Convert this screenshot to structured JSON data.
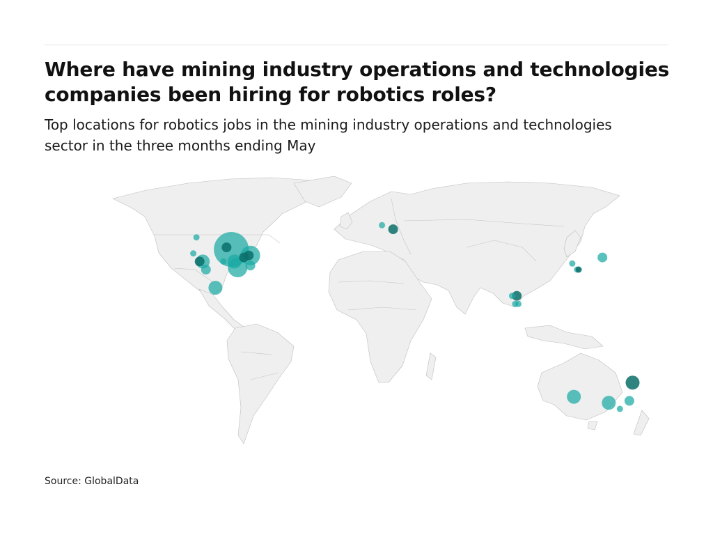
{
  "header": {
    "title": "Where have mining industry operations and technologies companies been hiring for robotics roles?",
    "subtitle": "Top locations for robotics jobs in the mining industry operations and technologies sector in the three months ending May"
  },
  "footer": {
    "source": "Source: GlobalData"
  },
  "colors": {
    "land": "#efefef",
    "border": "#bdbdbd",
    "bubble": "#1aa9a4",
    "bubble_dark": "#0b6e6a"
  },
  "map_data": {
    "projection": "equirectangular",
    "markers": [
      {
        "lon": -100,
        "lat": 41,
        "size": "xlarge"
      },
      {
        "lon": -88,
        "lat": 38,
        "size": "large"
      },
      {
        "lon": -103,
        "lat": 42,
        "size": "small",
        "shade": "dark"
      },
      {
        "lon": -92,
        "lat": 37,
        "size": "small",
        "shade": "dark"
      },
      {
        "lon": -89,
        "lat": 38,
        "size": "small",
        "shade": "dark"
      },
      {
        "lon": -96,
        "lat": 32,
        "size": "large"
      },
      {
        "lon": -98,
        "lat": 35,
        "size": "medium"
      },
      {
        "lon": -88,
        "lat": 33,
        "size": "small"
      },
      {
        "lon": -122,
        "lat": 47,
        "size": "tiny"
      },
      {
        "lon": -124,
        "lat": 39,
        "size": "tiny"
      },
      {
        "lon": -118,
        "lat": 35,
        "size": "medium"
      },
      {
        "lon": -120,
        "lat": 35,
        "size": "small",
        "shade": "dark"
      },
      {
        "lon": -116,
        "lat": 31,
        "size": "small"
      },
      {
        "lon": -105,
        "lat": 35,
        "size": "tiny"
      },
      {
        "lon": -110,
        "lat": 22,
        "size": "medium"
      },
      {
        "lon": -5,
        "lat": 53,
        "size": "tiny"
      },
      {
        "lon": 2,
        "lat": 51,
        "size": "small",
        "shade": "dark"
      },
      {
        "lon": 77,
        "lat": 18,
        "size": "tiny"
      },
      {
        "lon": 80,
        "lat": 18,
        "size": "small",
        "shade": "dark"
      },
      {
        "lon": 79,
        "lat": 14,
        "size": "tiny"
      },
      {
        "lon": 81,
        "lat": 14,
        "size": "tiny"
      },
      {
        "lon": 115,
        "lat": 34,
        "size": "tiny"
      },
      {
        "lon": 118,
        "lat": 31,
        "size": "tiny"
      },
      {
        "lon": 119,
        "lat": 31,
        "size": "tiny",
        "shade": "dark"
      },
      {
        "lon": 134,
        "lat": 37,
        "size": "small"
      },
      {
        "lon": 153,
        "lat": -25,
        "size": "medium",
        "shade": "dark"
      },
      {
        "lon": 116,
        "lat": -32,
        "size": "medium"
      },
      {
        "lon": 138,
        "lat": -35,
        "size": "medium"
      },
      {
        "lon": 145,
        "lat": -38,
        "size": "tiny"
      },
      {
        "lon": 151,
        "lat": -34,
        "size": "small"
      }
    ]
  }
}
